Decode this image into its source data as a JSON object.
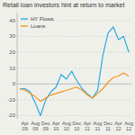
{
  "chart_data": {
    "type": "line",
    "title": "Retail loan investors hint at return to market",
    "categories": [
      null,
      "Apr\n09",
      null,
      "Aug\n09",
      null,
      "Dec\n09",
      null,
      "Apr\n10",
      null,
      "Aug\n10",
      null,
      "Dec\n10",
      null,
      "Apr\n11",
      null,
      "Aug\n11",
      null,
      "Dec\n11",
      null,
      "Apr\n12",
      null,
      "Aug\n12"
    ],
    "series": [
      {
        "name": "HY Flows",
        "color": "#29abe2",
        "values": [
          -3,
          -3,
          -5,
          -12,
          -20,
          -10,
          -5,
          -2,
          6,
          3,
          8,
          2,
          -3,
          -6,
          -9,
          -4,
          18,
          32,
          36,
          28,
          30,
          20
        ]
      },
      {
        "name": "Loans",
        "color": "#f7941d",
        "values": [
          -3,
          -4,
          -6,
          -8,
          -11,
          -9,
          -7,
          -6,
          -5,
          -4,
          -3,
          -2,
          -4,
          -7,
          -9,
          -6,
          -3,
          1,
          4,
          5,
          7,
          5
        ]
      }
    ],
    "ylim": [
      -22,
      45
    ],
    "yticks": [
      -20,
      -10,
      0,
      10,
      20,
      30,
      40
    ],
    "grid": true,
    "legend": "upper left"
  }
}
